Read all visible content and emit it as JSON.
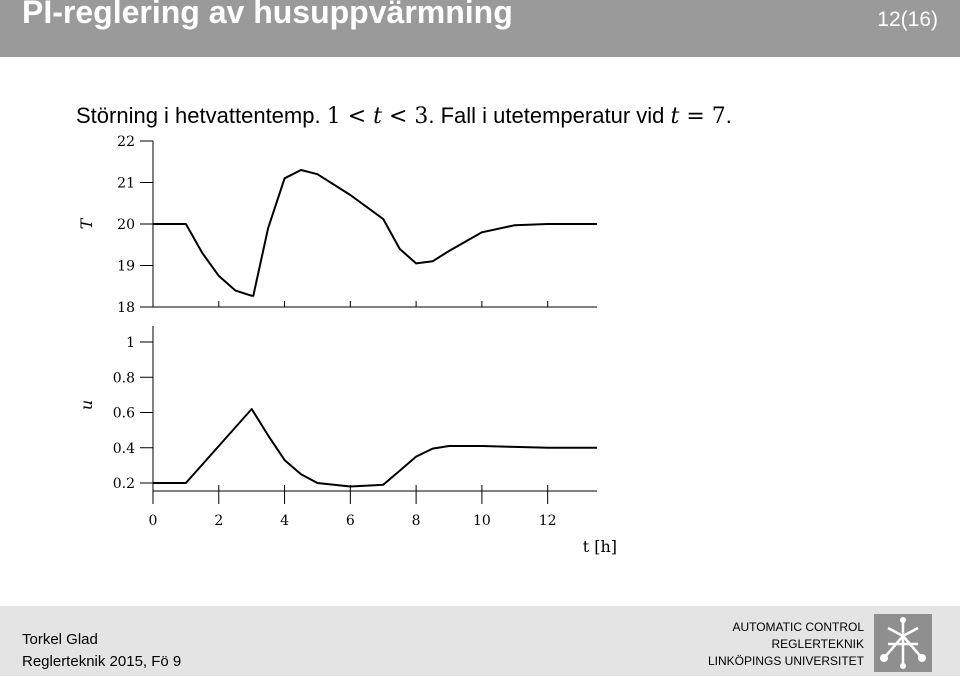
{
  "header": {
    "title": "PI-reglering av husuppvärmning",
    "page": "12(16)"
  },
  "subtitle": {
    "text_1": "Störning i hetvattentemp. ",
    "math_1_a": "1",
    "math_1_b": " < ",
    "math_1_c": "t",
    "math_1_d": " < ",
    "math_1_e": "3",
    "text_2": ". Fall i utetemperatur vid ",
    "math_2_a": "t",
    "math_2_b": " = 7",
    "text_3": "."
  },
  "footer": {
    "author": "Torkel Glad",
    "course": "Reglerteknik 2015, Fö 9",
    "org_line1": "AUTOMATIC CONTROL",
    "org_line2": "REGLERTEKNIK",
    "org_line3": "LINKÖPINGS UNIVERSITET",
    "logo_icon": "liu-logo-icon"
  },
  "chart_data": [
    {
      "type": "line",
      "ylabel": "T",
      "xlabel": "",
      "xlim": [
        0,
        13.5
      ],
      "ylim": [
        18,
        22
      ],
      "yticks": [
        "18",
        "19",
        "20",
        "21",
        "22"
      ],
      "ytick_values": [
        18,
        19,
        20,
        21,
        22
      ],
      "xtick_values": [
        0,
        2,
        4,
        6,
        8,
        10,
        12
      ],
      "grid": false,
      "series": [
        {
          "color": "#000000",
          "x": [
            0,
            1,
            1.5,
            2,
            2.5,
            3,
            3.05,
            3.5,
            4,
            4.5,
            5,
            6,
            7,
            7.5,
            8,
            8.5,
            9,
            10,
            11,
            12,
            13.5
          ],
          "y": [
            20,
            20,
            19.3,
            18.75,
            18.4,
            18.27,
            18.27,
            19.9,
            21.1,
            21.3,
            21.2,
            20.7,
            20.12,
            19.4,
            19.05,
            19.1,
            19.35,
            19.8,
            19.97,
            20,
            20
          ]
        }
      ]
    },
    {
      "type": "line",
      "ylabel": "u",
      "xlabel": "t [h]",
      "xlim": [
        0,
        13.5
      ],
      "ylim": [
        0.2,
        1.1
      ],
      "yticks": [
        "0.2",
        "0.4",
        "0.6",
        "0.8",
        "1"
      ],
      "ytick_values": [
        0.2,
        0.4,
        0.6,
        0.8,
        1
      ],
      "xticks": [
        "0",
        "2",
        "4",
        "6",
        "8",
        "10",
        "12"
      ],
      "xtick_values": [
        0,
        2,
        4,
        6,
        8,
        10,
        12
      ],
      "grid": false,
      "series": [
        {
          "color": "#000000",
          "x": [
            0,
            1,
            2,
            3,
            3.5,
            4,
            4.5,
            5,
            6,
            7,
            7.5,
            8,
            8.5,
            9,
            10,
            11,
            12,
            13.5
          ],
          "y": [
            0.2,
            0.2,
            0.41,
            0.62,
            0.47,
            0.33,
            0.25,
            0.2,
            0.18,
            0.19,
            0.27,
            0.35,
            0.395,
            0.41,
            0.41,
            0.405,
            0.4,
            0.4
          ]
        }
      ]
    }
  ]
}
